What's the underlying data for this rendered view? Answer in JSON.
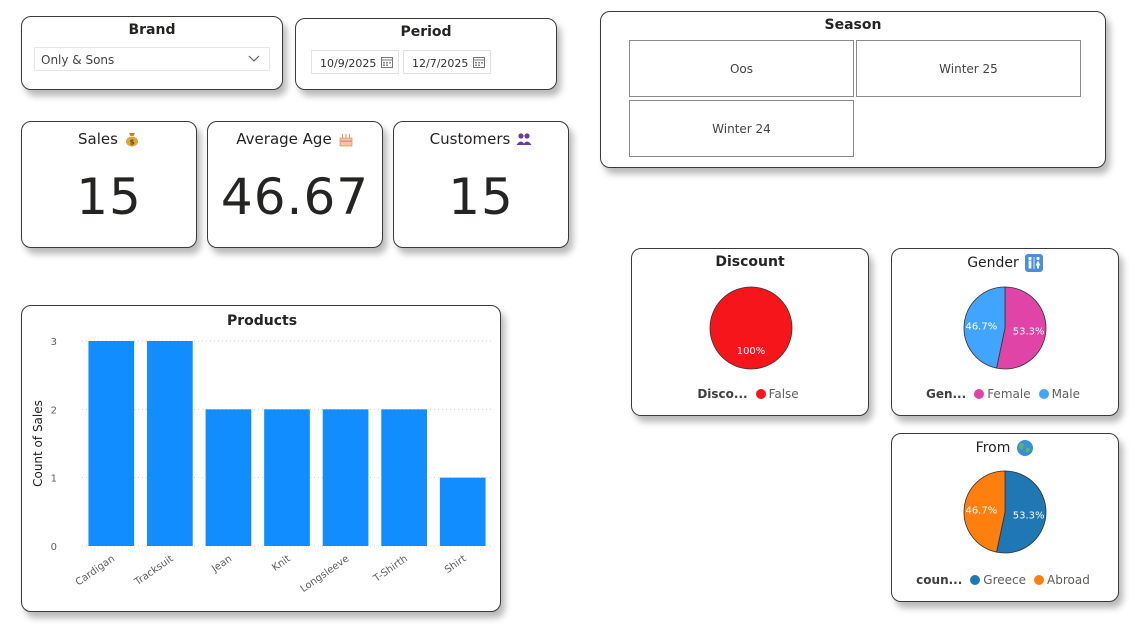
{
  "brand": {
    "title": "Brand",
    "selected": "Only & Sons"
  },
  "period": {
    "title": "Period",
    "start": "10/9/2025",
    "end": "12/7/2025"
  },
  "season": {
    "title": "Season",
    "options": [
      "Oos",
      "Winter 25",
      "Winter 24"
    ]
  },
  "kpis": {
    "sales": {
      "title": "Sales",
      "value": "15",
      "icon": "money-bag-icon"
    },
    "average_age": {
      "title": "Average Age",
      "value": "46.67",
      "icon": "cake-icon"
    },
    "customers": {
      "title": "Customers",
      "value": "15",
      "icon": "people-icon"
    }
  },
  "discount": {
    "title": "Discount",
    "legend_title": "Disco...",
    "legend": [
      {
        "label": "False",
        "color": "#F5151A"
      }
    ]
  },
  "gender": {
    "title": "Gender",
    "icon": "restroom-icon",
    "legend_title": "Gen...",
    "legend": [
      {
        "label": "Female",
        "color": "#E044A7"
      },
      {
        "label": "Male",
        "color": "#41A4FF"
      }
    ]
  },
  "from": {
    "title": "From",
    "icon": "globe-icon",
    "legend_title": "coun...",
    "legend": [
      {
        "label": "Greece",
        "color": "#1F77B4"
      },
      {
        "label": "Abroad",
        "color": "#FF7F0E"
      }
    ]
  },
  "chart_data": [
    {
      "type": "bar",
      "title": "Products",
      "categories": [
        "Cardigan",
        "Tracksuit",
        "Jean",
        "Knit",
        "Longsleeve",
        "T-Shirth",
        "Shirt"
      ],
      "values": [
        3,
        3,
        2,
        2,
        2,
        2,
        1
      ],
      "xlabel": "",
      "ylabel": "Count of Sales",
      "ylim": [
        0,
        3
      ],
      "yticks": [
        0,
        1,
        2,
        3
      ],
      "grid": true,
      "color": "#118DFF"
    },
    {
      "type": "pie",
      "title": "Discount",
      "labels": [
        "False"
      ],
      "values": [
        100
      ],
      "display_labels": [
        "100%"
      ],
      "colors": [
        "#F5151A"
      ]
    },
    {
      "type": "pie",
      "title": "Gender",
      "labels": [
        "Female",
        "Male"
      ],
      "values": [
        53.3,
        46.7
      ],
      "display_labels": [
        "53.3%",
        "46.7%"
      ],
      "colors": [
        "#E044A7",
        "#41A4FF"
      ]
    },
    {
      "type": "pie",
      "title": "From",
      "labels": [
        "Greece",
        "Abroad"
      ],
      "values": [
        53.3,
        46.7
      ],
      "display_labels": [
        "53.3%",
        "46.7%"
      ],
      "colors": [
        "#1F77B4",
        "#FF7F0E"
      ]
    }
  ]
}
